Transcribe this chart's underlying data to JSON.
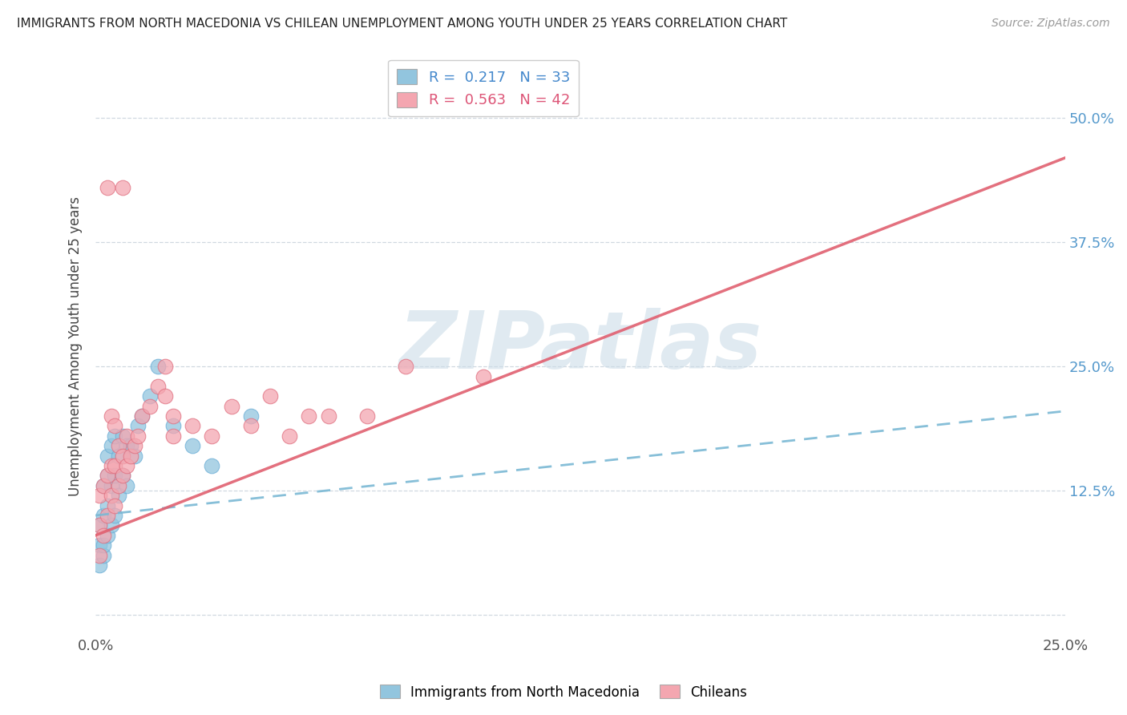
{
  "title": "IMMIGRANTS FROM NORTH MACEDONIA VS CHILEAN UNEMPLOYMENT AMONG YOUTH UNDER 25 YEARS CORRELATION CHART",
  "source": "Source: ZipAtlas.com",
  "ylabel": "Unemployment Among Youth under 25 years",
  "xlim": [
    0.0,
    0.25
  ],
  "ylim": [
    -0.02,
    0.56
  ],
  "yticks": [
    0.0,
    0.125,
    0.25,
    0.375,
    0.5
  ],
  "ytick_labels": [
    "",
    "12.5%",
    "25.0%",
    "37.5%",
    "50.0%"
  ],
  "xticks": [
    0.0,
    0.05,
    0.1,
    0.15,
    0.2,
    0.25
  ],
  "xtick_labels": [
    "0.0%",
    "",
    "",
    "",
    "",
    "25.0%"
  ],
  "series1_label": "Immigrants from North Macedonia",
  "series1_R": 0.217,
  "series1_N": 33,
  "series1_color": "#92c5de",
  "series1_edge": "#6baed6",
  "series2_label": "Chileans",
  "series2_R": 0.563,
  "series2_N": 42,
  "series2_color": "#f4a6b0",
  "series2_edge": "#e07080",
  "background_color": "#ffffff",
  "watermark": "ZIPatlas",
  "watermark_color": "#ccdde8",
  "blue_line_color": "#7ab8d4",
  "pink_line_color": "#e06070",
  "series1_x": [
    0.001,
    0.001,
    0.001,
    0.002,
    0.002,
    0.002,
    0.002,
    0.003,
    0.003,
    0.003,
    0.003,
    0.004,
    0.004,
    0.004,
    0.005,
    0.005,
    0.005,
    0.006,
    0.006,
    0.007,
    0.007,
    0.008,
    0.008,
    0.009,
    0.01,
    0.011,
    0.012,
    0.014,
    0.016,
    0.02,
    0.025,
    0.03,
    0.04
  ],
  "series1_y": [
    0.05,
    0.07,
    0.09,
    0.06,
    0.07,
    0.1,
    0.13,
    0.08,
    0.11,
    0.14,
    0.16,
    0.09,
    0.13,
    0.17,
    0.1,
    0.14,
    0.18,
    0.12,
    0.16,
    0.14,
    0.18,
    0.13,
    0.17,
    0.17,
    0.16,
    0.19,
    0.2,
    0.22,
    0.25,
    0.19,
    0.17,
    0.15,
    0.2
  ],
  "series2_x": [
    0.001,
    0.001,
    0.001,
    0.002,
    0.002,
    0.003,
    0.003,
    0.003,
    0.004,
    0.004,
    0.004,
    0.005,
    0.005,
    0.005,
    0.006,
    0.006,
    0.007,
    0.007,
    0.008,
    0.008,
    0.009,
    0.01,
    0.011,
    0.012,
    0.014,
    0.016,
    0.018,
    0.02,
    0.025,
    0.03,
    0.035,
    0.04,
    0.045,
    0.05,
    0.06,
    0.07,
    0.08,
    0.1,
    0.02,
    0.018,
    0.007,
    0.055
  ],
  "series2_y": [
    0.06,
    0.09,
    0.12,
    0.08,
    0.13,
    0.1,
    0.14,
    0.43,
    0.12,
    0.15,
    0.2,
    0.11,
    0.15,
    0.19,
    0.13,
    0.17,
    0.14,
    0.16,
    0.15,
    0.18,
    0.16,
    0.17,
    0.18,
    0.2,
    0.21,
    0.23,
    0.22,
    0.2,
    0.19,
    0.18,
    0.21,
    0.19,
    0.22,
    0.18,
    0.2,
    0.2,
    0.25,
    0.24,
    0.18,
    0.25,
    0.43,
    0.2
  ],
  "blue_line_x0": 0.0,
  "blue_line_y0": 0.1,
  "blue_line_x1": 0.25,
  "blue_line_y1": 0.205,
  "pink_line_x0": 0.0,
  "pink_line_y0": 0.08,
  "pink_line_x1": 0.25,
  "pink_line_y1": 0.46
}
